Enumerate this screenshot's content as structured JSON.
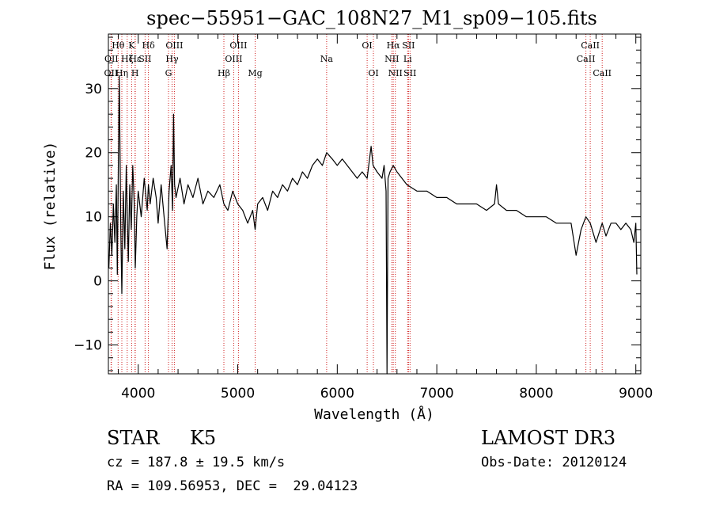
{
  "chart_data": {
    "type": "line",
    "title": "spec−55951−GAC_108N27_M1_sp09−105.fits",
    "xlabel": "Wavelength (Å)",
    "ylabel": "Flux (relative)",
    "xlim": [
      3700,
      9050
    ],
    "ylim": [
      -14.5,
      38.5
    ],
    "xticks": [
      4000,
      5000,
      6000,
      7000,
      8000,
      9000
    ],
    "yticks": [
      -10,
      0,
      10,
      20,
      30
    ],
    "xtick_labels": [
      "4000",
      "5000",
      "6000",
      "7000",
      "8000",
      "9000"
    ],
    "ytick_labels": [
      "−10",
      "0",
      "10",
      "20",
      "30"
    ],
    "grid": false,
    "series": [
      {
        "name": "flux",
        "x": [
          3705,
          3720,
          3735,
          3750,
          3765,
          3780,
          3790,
          3800,
          3810,
          3825,
          3835,
          3850,
          3865,
          3880,
          3890,
          3900,
          3915,
          3930,
          3945,
          3960,
          3970,
          3985,
          4000,
          4030,
          4060,
          4090,
          4102,
          4120,
          4150,
          4180,
          4200,
          4230,
          4260,
          4290,
          4310,
          4330,
          4345,
          4355,
          4365,
          4380,
          4420,
          4460,
          4500,
          4550,
          4600,
          4650,
          4700,
          4760,
          4820,
          4861,
          4900,
          4950,
          5000,
          5050,
          5100,
          5150,
          5175,
          5200,
          5250,
          5300,
          5350,
          5400,
          5450,
          5500,
          5550,
          5600,
          5650,
          5700,
          5750,
          5800,
          5850,
          5893,
          5950,
          6000,
          6050,
          6100,
          6150,
          6200,
          6250,
          6300,
          6340,
          6360,
          6400,
          6450,
          6470,
          6490,
          6500,
          6510,
          6530,
          6563,
          6600,
          6650,
          6700,
          6800,
          6900,
          7000,
          7100,
          7200,
          7300,
          7400,
          7500,
          7580,
          7600,
          7620,
          7700,
          7800,
          7900,
          8000,
          8100,
          8200,
          8300,
          8350,
          8400,
          8450,
          8498,
          8542,
          8600,
          8662,
          8700,
          8750,
          8800,
          8850,
          8900,
          8950,
          8980,
          9000,
          9010
        ],
        "y": [
          2,
          9,
          4,
          12,
          6,
          15,
          1,
          18,
          32,
          8,
          -2,
          14,
          5,
          18,
          10,
          3,
          15,
          8,
          18,
          12,
          2,
          10,
          14,
          10,
          16,
          11,
          15,
          12,
          16,
          13,
          9,
          15,
          10,
          5,
          14,
          18,
          11,
          26,
          15,
          13,
          16,
          12,
          15,
          13,
          16,
          12,
          14,
          13,
          15,
          12,
          11,
          14,
          12,
          11,
          9,
          11,
          8,
          12,
          13,
          11,
          14,
          13,
          15,
          14,
          16,
          15,
          17,
          16,
          18,
          19,
          18,
          20,
          19,
          18,
          19,
          18,
          17,
          16,
          17,
          16,
          21,
          18,
          17,
          16,
          18,
          14,
          -14.5,
          16,
          17,
          18,
          17,
          16,
          15,
          14,
          14,
          13,
          13,
          12,
          12,
          12,
          11,
          12,
          15,
          12,
          11,
          11,
          10,
          10,
          10,
          9,
          9,
          9,
          4,
          8,
          10,
          9,
          6,
          9,
          7,
          9,
          9,
          8,
          9,
          8,
          6,
          9,
          1
        ]
      }
    ],
    "line_markers": [
      {
        "name": "OII",
        "wl": 3727,
        "row": 3
      },
      {
        "name": "OII",
        "wl": 3730,
        "row": 2
      },
      {
        "name": "Hθ",
        "wl": 3798,
        "row": 1
      },
      {
        "name": "Hη",
        "wl": 3835,
        "row": 3
      },
      {
        "name": "Hζ",
        "wl": 3889,
        "row": 2
      },
      {
        "name": "K",
        "wl": 3934,
        "row": 1
      },
      {
        "name": "Hε",
        "wl": 3970,
        "row": 2
      },
      {
        "name": "H",
        "wl": 3968,
        "row": 3
      },
      {
        "name": "SII",
        "wl": 4069,
        "row": 2
      },
      {
        "name": "Hδ",
        "wl": 4102,
        "row": 1
      },
      {
        "name": "G",
        "wl": 4304,
        "row": 3
      },
      {
        "name": "Hγ",
        "wl": 4340,
        "row": 2
      },
      {
        "name": "OIII",
        "wl": 4363,
        "row": 1
      },
      {
        "name": "Hβ",
        "wl": 4861,
        "row": 3
      },
      {
        "name": "OIII",
        "wl": 4959,
        "row": 2
      },
      {
        "name": "OIII",
        "wl": 5007,
        "row": 1
      },
      {
        "name": "Mg",
        "wl": 5175,
        "row": 3
      },
      {
        "name": "Na",
        "wl": 5893,
        "row": 2
      },
      {
        "name": "OI",
        "wl": 6300,
        "row": 1
      },
      {
        "name": "OI",
        "wl": 6363,
        "row": 3
      },
      {
        "name": "NII",
        "wl": 6548,
        "row": 2
      },
      {
        "name": "Hα",
        "wl": 6563,
        "row": 1
      },
      {
        "name": "NII",
        "wl": 6583,
        "row": 3
      },
      {
        "name": "Li",
        "wl": 6707,
        "row": 2
      },
      {
        "name": "SII",
        "wl": 6716,
        "row": 1
      },
      {
        "name": "SII",
        "wl": 6731,
        "row": 3
      },
      {
        "name": "CaII",
        "wl": 8498,
        "row": 2
      },
      {
        "name": "CaII",
        "wl": 8542,
        "row": 1
      },
      {
        "name": "CaII",
        "wl": 8662,
        "row": 3
      }
    ]
  },
  "info": {
    "class": "STAR",
    "subclass": "K5",
    "survey": "LAMOST DR3",
    "cz": "cz = 187.8 ± 19.5 km/s",
    "obs_date": "Obs-Date: 20120124",
    "coords": "RA = 109.56953, DEC =  29.04123"
  }
}
